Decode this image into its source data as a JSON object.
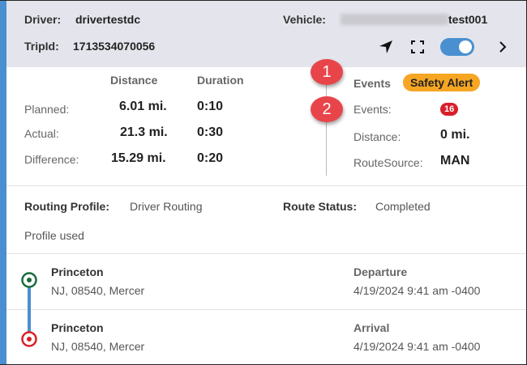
{
  "header": {
    "driver_label": "Driver:",
    "driver": "drivertestdc",
    "vehicle_label": "Vehicle:",
    "vehicle": "test001",
    "trip_label": "TripId:",
    "trip_id": "1713534070056",
    "toggle_on": true
  },
  "stats": {
    "distance_header": "Distance",
    "duration_header": "Duration",
    "rows": [
      {
        "label": "Planned:",
        "distance": "6.01 mi.",
        "duration": "0:10"
      },
      {
        "label": "Actual:",
        "distance": "21.3 mi.",
        "duration": "0:30"
      },
      {
        "label": "Difference:",
        "distance": "15.29 mi.",
        "duration": "0:20"
      }
    ]
  },
  "events": {
    "title": "Events",
    "alert": "Safety Alert",
    "events_label": "Events:",
    "events_count": "16",
    "distance_label": "Distance:",
    "distance": "0 mi.",
    "source_label": "RouteSource:",
    "source": "MAN"
  },
  "callouts": [
    "1",
    "2"
  ],
  "routing": {
    "profile_label": "Routing Profile:",
    "profile": "Driver Routing",
    "status_label": "Route Status:",
    "status": "Completed",
    "profile_used": "Profile used"
  },
  "stops": [
    {
      "city": "Princeton",
      "address": "NJ, 08540, Mercer",
      "type": "Departure",
      "time": "4/19/2024 9:41 am -0400",
      "color": "#1a6b3c"
    },
    {
      "city": "Princeton",
      "address": "NJ, 08540, Mercer",
      "type": "Arrival",
      "time": "4/19/2024 9:41 am -0400",
      "color": "#d8202a"
    }
  ],
  "colors": {
    "accent": "#4a90d0",
    "alert": "#f6a623",
    "badge": "#d8202a"
  }
}
